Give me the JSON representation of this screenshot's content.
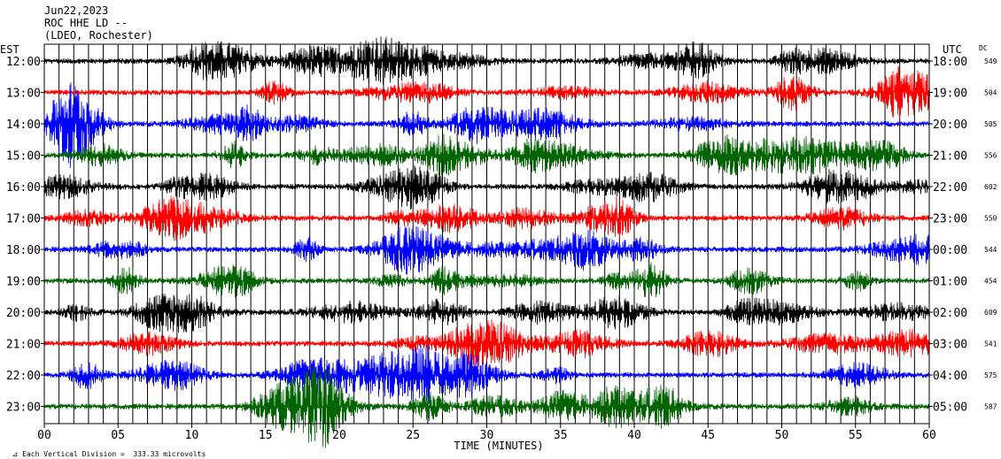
{
  "header": {
    "date": "Jun22,2023",
    "station": "ROC HHE LD --",
    "network": "(LDEO, Rochester)",
    "left_zone": "EST",
    "right_zone": "UTC",
    "dc_label": "DC"
  },
  "footer": {
    "scale_note": "Each Vertical Division =  333.33 microvolts"
  },
  "colors": {
    "trace_cycle": [
      "#000000",
      "#ff0000",
      "#0000ff",
      "#006400"
    ],
    "frame": "#000000",
    "grid": "#000000"
  },
  "chart_data": {
    "type": "line",
    "title": "",
    "xlabel": "TIME (MINUTES)",
    "xlim": [
      0,
      60
    ],
    "x_ticks": [
      "00",
      "05",
      "10",
      "15",
      "20",
      "25",
      "30",
      "35",
      "40",
      "45",
      "50",
      "55",
      "60"
    ],
    "grid": "vertical every 1 minute",
    "series": [
      {
        "left_label": "12:00",
        "right_label": "18:00",
        "dc": "549",
        "color": "#000000"
      },
      {
        "left_label": "13:00",
        "right_label": "19:00",
        "dc": "504",
        "color": "#ff0000"
      },
      {
        "left_label": "14:00",
        "right_label": "20:00",
        "dc": "505",
        "color": "#0000ff"
      },
      {
        "left_label": "15:00",
        "right_label": "21:00",
        "dc": "556",
        "color": "#006400"
      },
      {
        "left_label": "16:00",
        "right_label": "22:00",
        "dc": "602",
        "color": "#000000"
      },
      {
        "left_label": "17:00",
        "right_label": "23:00",
        "dc": "550",
        "color": "#ff0000"
      },
      {
        "left_label": "18:00",
        "right_label": "00:00",
        "dc": "544",
        "color": "#0000ff"
      },
      {
        "left_label": "19:00",
        "right_label": "01:00",
        "dc": "454",
        "color": "#006400"
      },
      {
        "left_label": "20:00",
        "right_label": "02:00",
        "dc": "609",
        "color": "#000000"
      },
      {
        "left_label": "21:00",
        "right_label": "03:00",
        "dc": "541",
        "color": "#ff0000"
      },
      {
        "left_label": "22:00",
        "right_label": "04:00",
        "dc": "575",
        "color": "#0000ff"
      },
      {
        "left_label": "23:00",
        "right_label": "05:00",
        "dc": "587",
        "color": "#006400"
      }
    ]
  }
}
